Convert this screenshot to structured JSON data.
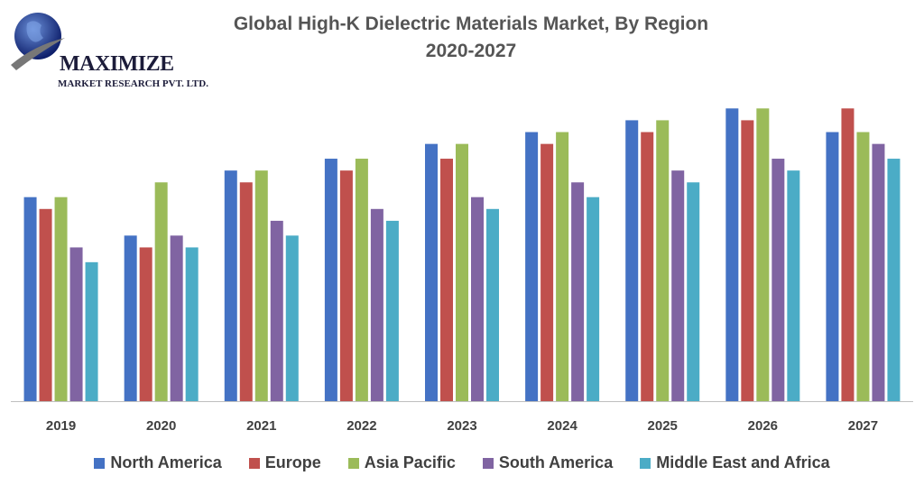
{
  "brand": {
    "name": "MAXIMIZE",
    "subtitle": "MARKET RESEARCH PVT. LTD."
  },
  "colors": {
    "North America": "#4472C4",
    "Europe": "#C0504D",
    "Asia Pacific": "#9BBB59",
    "South America": "#8064A2",
    "Middle East and Africa": "#4BACC6"
  },
  "chart_data": {
    "type": "bar",
    "title_line1": "Global High-K Dielectric Materials Market, By Region",
    "title_line2": "2020-2027",
    "categories": [
      "2019",
      "2020",
      "2021",
      "2022",
      "2023",
      "2024",
      "2025",
      "2026",
      "2027"
    ],
    "ylim": [
      0,
      100
    ],
    "grid": false,
    "legend_position": "bottom",
    "series": [
      {
        "name": "North America",
        "values": [
          69,
          56,
          78,
          82,
          87,
          91,
          95,
          99,
          91
        ]
      },
      {
        "name": "Europe",
        "values": [
          65,
          52,
          74,
          78,
          82,
          87,
          91,
          95,
          99
        ]
      },
      {
        "name": "Asia Pacific",
        "values": [
          69,
          74,
          78,
          82,
          87,
          91,
          95,
          99,
          91
        ]
      },
      {
        "name": "South America",
        "values": [
          52,
          56,
          61,
          65,
          69,
          74,
          78,
          82,
          87
        ]
      },
      {
        "name": "Middle East and Africa",
        "values": [
          47,
          52,
          56,
          61,
          65,
          69,
          74,
          78,
          82
        ]
      }
    ]
  }
}
